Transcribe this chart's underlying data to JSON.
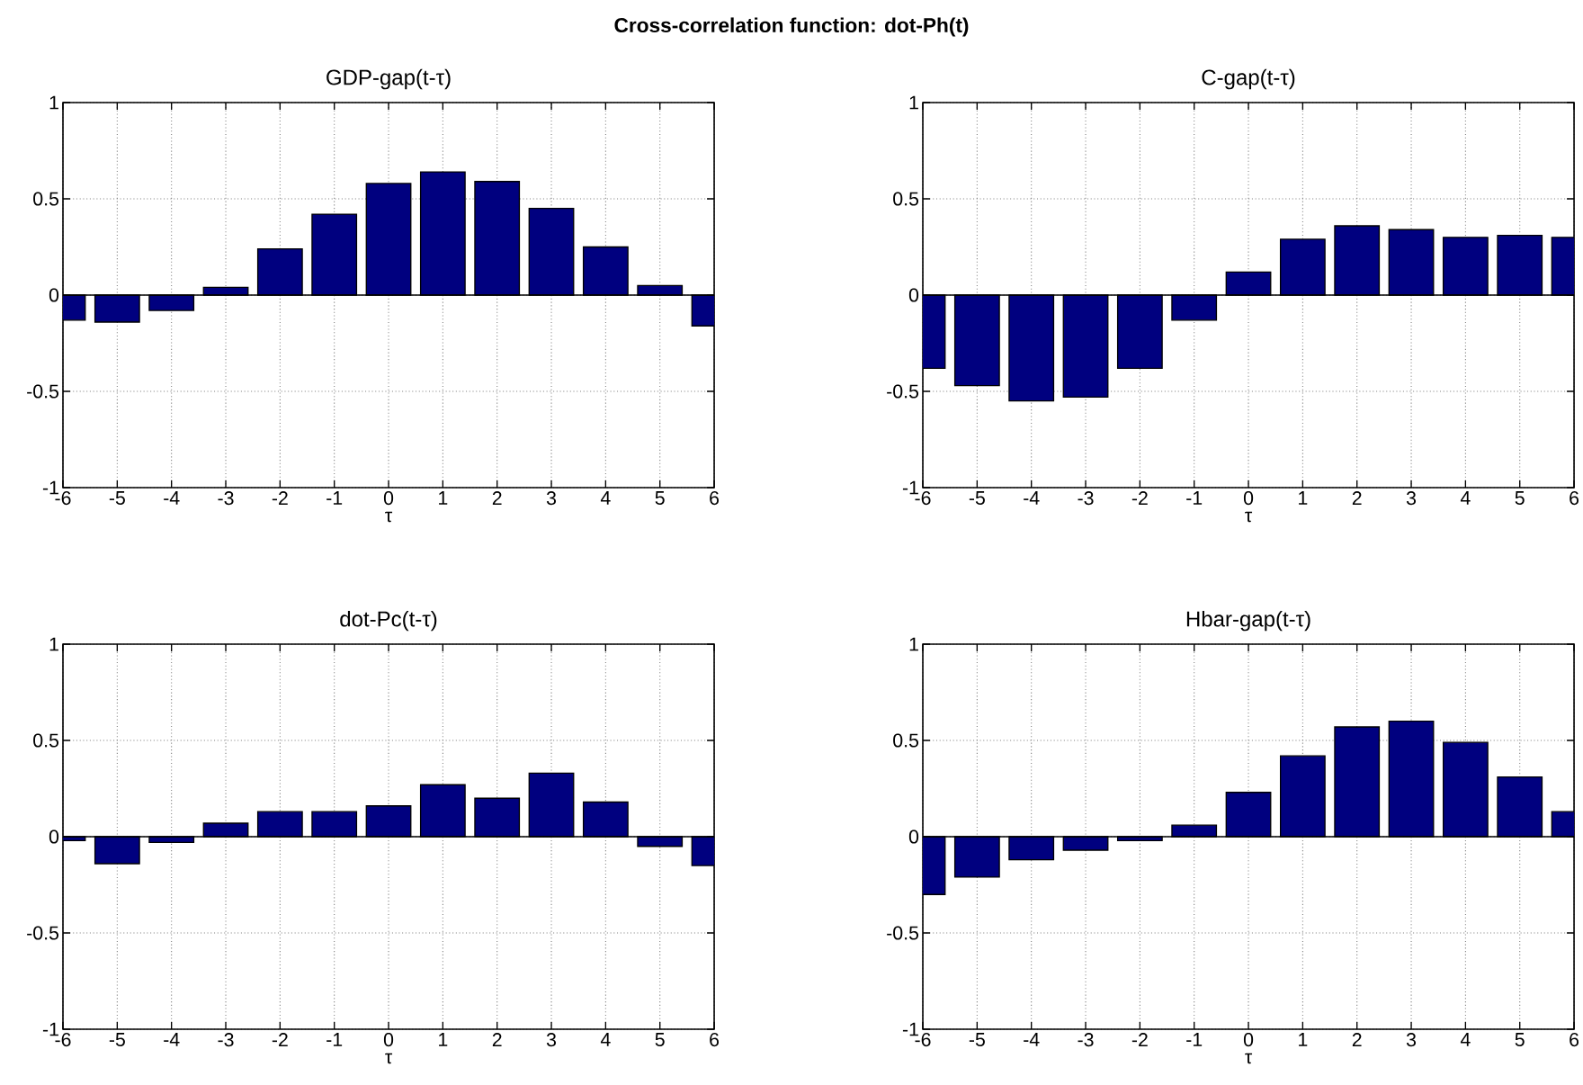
{
  "chart_data": [
    {
      "type": "bar",
      "title": "GDP-gap(t-τ)",
      "xlabel": "τ",
      "annotations": [
        "Cross-correlation function: dot-Ph(t)"
      ],
      "x": [
        -6,
        -5,
        -4,
        -3,
        -2,
        -1,
        0,
        1,
        2,
        3,
        4,
        5,
        6
      ],
      "values": [
        -0.13,
        -0.14,
        -0.08,
        0.04,
        0.24,
        0.42,
        0.58,
        0.64,
        0.59,
        0.45,
        0.25,
        0.05,
        -0.16
      ],
      "color": "#00007f",
      "xlim": [
        -6,
        6
      ],
      "xticks": [
        -6,
        -5,
        -4,
        -3,
        -2,
        -1,
        0,
        1,
        2,
        3,
        4,
        5,
        6
      ],
      "ylim": [
        -1,
        1
      ],
      "yticks": [
        -1,
        -0.5,
        0,
        0.5,
        1
      ],
      "grid": true
    },
    {
      "type": "bar",
      "title": "C-gap(t-τ)",
      "xlabel": "τ",
      "x": [
        -6,
        -5,
        -4,
        -3,
        -2,
        -1,
        0,
        1,
        2,
        3,
        4,
        5,
        6
      ],
      "values": [
        -0.38,
        -0.47,
        -0.55,
        -0.53,
        -0.38,
        -0.13,
        0.12,
        0.29,
        0.36,
        0.34,
        0.3,
        0.31,
        0.3
      ],
      "color": "#00007f",
      "xlim": [
        -6,
        6
      ],
      "xticks": [
        -6,
        -5,
        -4,
        -3,
        -2,
        -1,
        0,
        1,
        2,
        3,
        4,
        5,
        6
      ],
      "ylim": [
        -1,
        1
      ],
      "yticks": [
        -1,
        -0.5,
        0,
        0.5,
        1
      ],
      "grid": true
    },
    {
      "type": "bar",
      "title": "dot-Pc(t-τ)",
      "xlabel": "τ",
      "x": [
        -6,
        -5,
        -4,
        -3,
        -2,
        -1,
        0,
        1,
        2,
        3,
        4,
        5,
        6
      ],
      "values": [
        -0.02,
        -0.14,
        -0.03,
        0.07,
        0.13,
        0.13,
        0.16,
        0.27,
        0.2,
        0.33,
        0.18,
        -0.05,
        -0.15
      ],
      "color": "#00007f",
      "xlim": [
        -6,
        6
      ],
      "xticks": [
        -6,
        -5,
        -4,
        -3,
        -2,
        -1,
        0,
        1,
        2,
        3,
        4,
        5,
        6
      ],
      "ylim": [
        -1,
        1
      ],
      "yticks": [
        -1,
        -0.5,
        0,
        0.5,
        1
      ],
      "grid": true
    },
    {
      "type": "bar",
      "title": "Hbar-gap(t-τ)",
      "xlabel": "τ",
      "x": [
        -6,
        -5,
        -4,
        -3,
        -2,
        -1,
        0,
        1,
        2,
        3,
        4,
        5,
        6
      ],
      "values": [
        -0.3,
        -0.21,
        -0.12,
        -0.07,
        -0.02,
        0.06,
        0.23,
        0.42,
        0.57,
        0.6,
        0.49,
        0.31,
        0.13
      ],
      "color": "#00007f",
      "xlim": [
        -6,
        6
      ],
      "xticks": [
        -6,
        -5,
        -4,
        -3,
        -2,
        -1,
        0,
        1,
        2,
        3,
        4,
        5,
        6
      ],
      "ylim": [
        -1,
        1
      ],
      "yticks": [
        -1,
        -0.5,
        0,
        0.5,
        1
      ],
      "grid": true
    }
  ]
}
